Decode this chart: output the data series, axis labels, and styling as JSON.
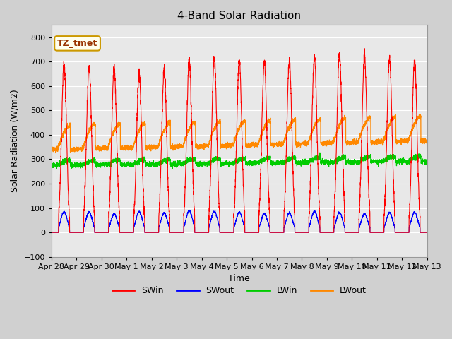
{
  "title": "4-Band Solar Radiation",
  "xlabel": "Time",
  "ylabel": "Solar Radiation (W/m2)",
  "ylim": [
    -100,
    850
  ],
  "yticks": [
    -100,
    0,
    100,
    200,
    300,
    400,
    500,
    600,
    700,
    800
  ],
  "tick_labels": [
    "Apr 28",
    "Apr 29",
    "Apr 30",
    "May 1",
    "May 2",
    "May 3",
    "May 4",
    "May 5",
    "May 6",
    "May 7",
    "May 8",
    "May 9",
    "May 10",
    "May 11",
    "May 12",
    "May 13"
  ],
  "annotation_text": "TZ_tmet",
  "annotation_color": "#cc9900",
  "annotation_bg": "#ffffee",
  "colors": {
    "SWin": "#ff0000",
    "SWout": "#0000ff",
    "LWin": "#00cc00",
    "LWout": "#ff8800"
  },
  "num_days": 15,
  "ppd": 288,
  "fig_bg": "#d0d0d0",
  "ax_bg": "#e8e8e8"
}
